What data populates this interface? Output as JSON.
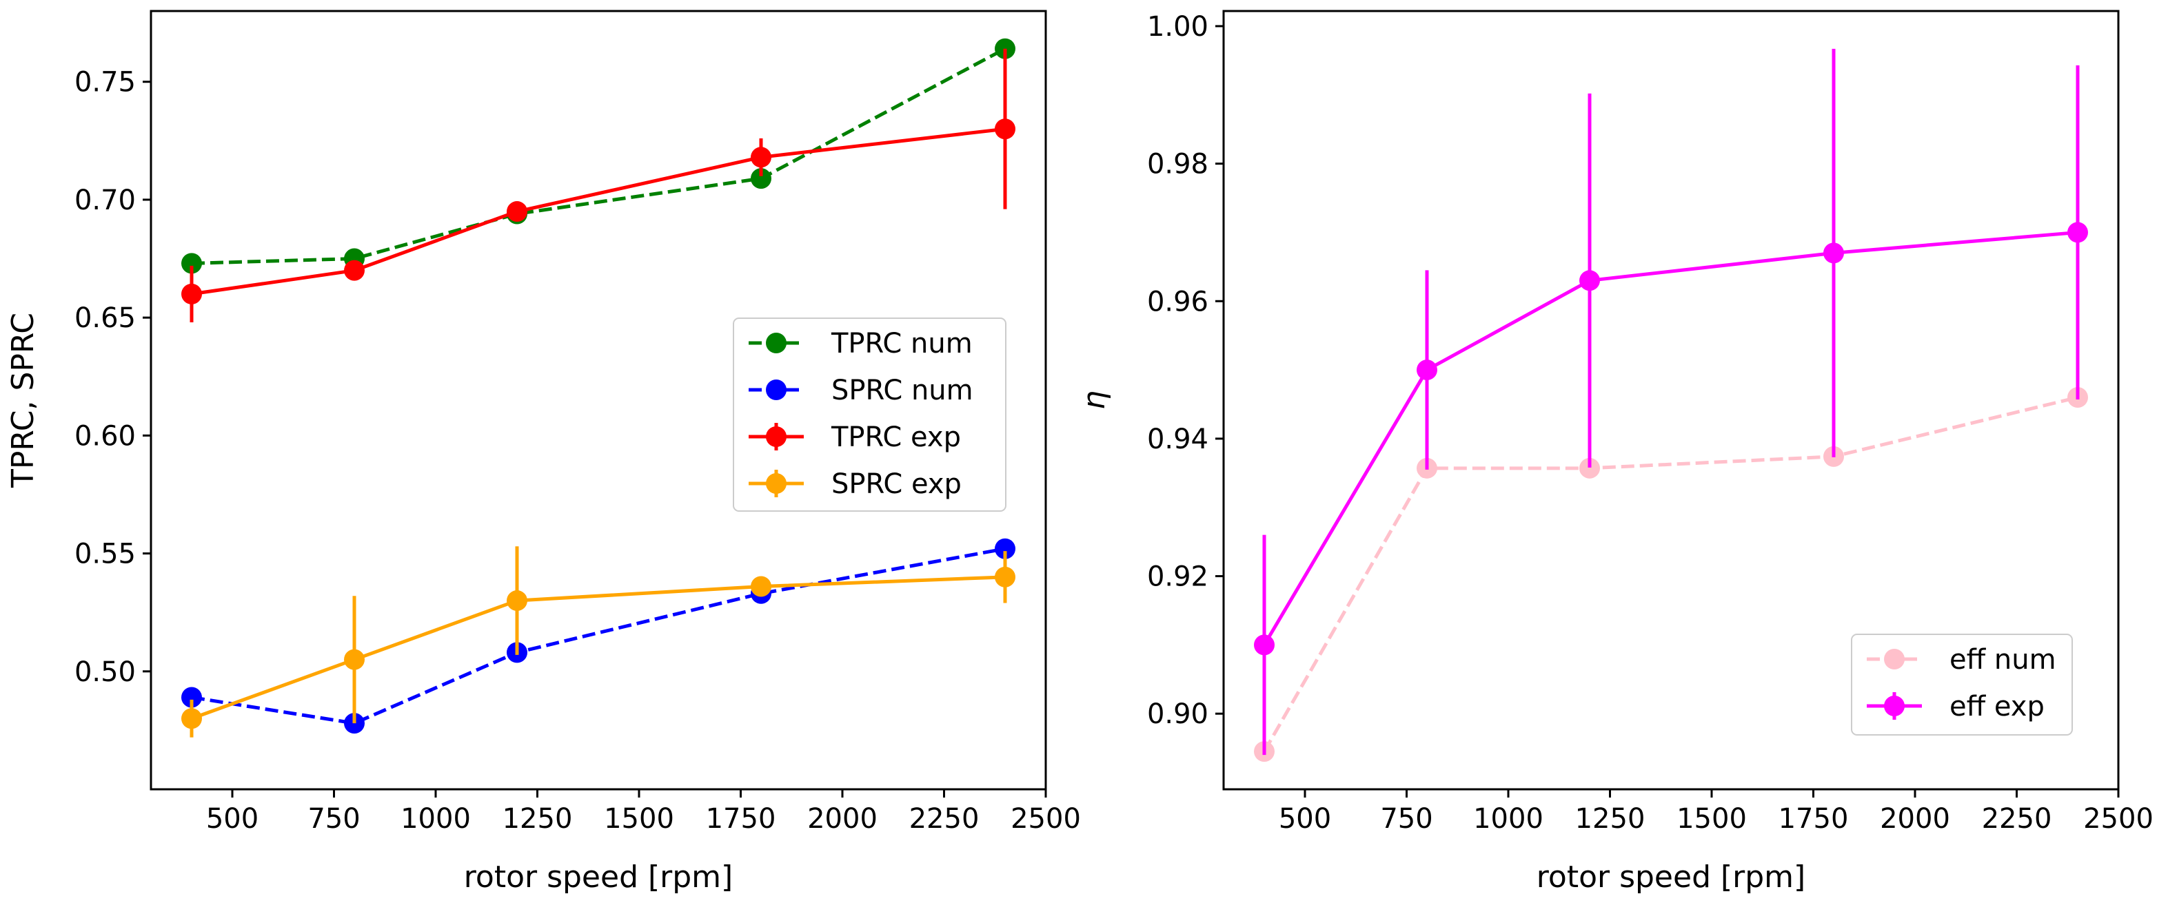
{
  "chart_data": [
    {
      "type": "line",
      "xlabel": "rotor speed [rpm]",
      "ylabel": "TPRC, SPRC",
      "xlim": [
        300,
        2500
      ],
      "ylim": [
        0.45,
        0.78
      ],
      "xticks": [
        500,
        750,
        1000,
        1250,
        1500,
        1750,
        2000,
        2250,
        2500
      ],
      "xtick_labels": [
        "500",
        "750",
        "1000",
        "1250",
        "1500",
        "1750",
        "2000",
        "2250",
        "2500"
      ],
      "yticks": [
        0.5,
        0.55,
        0.6,
        0.65,
        0.7,
        0.75
      ],
      "ytick_labels": [
        "0.50",
        "0.55",
        "0.60",
        "0.65",
        "0.70",
        "0.75"
      ],
      "legend_position": "center-right",
      "series": [
        {
          "name": "TPRC num",
          "color": "#008000",
          "dashed": true,
          "errorbar": false,
          "x": [
            400,
            800,
            1200,
            1800,
            2400
          ],
          "values": [
            0.673,
            0.675,
            0.694,
            0.709,
            0.764
          ]
        },
        {
          "name": "SPRC num",
          "color": "#0000ff",
          "dashed": true,
          "errorbar": false,
          "x": [
            400,
            800,
            1200,
            1800,
            2400
          ],
          "values": [
            0.489,
            0.478,
            0.508,
            0.533,
            0.552
          ]
        },
        {
          "name": "TPRC exp",
          "color": "#ff0000",
          "dashed": false,
          "errorbar": true,
          "x": [
            400,
            800,
            1200,
            1800,
            2400
          ],
          "values": [
            0.66,
            0.67,
            0.695,
            0.718,
            0.73
          ],
          "errors": [
            0.012,
            0.004,
            0.004,
            0.008,
            0.034
          ]
        },
        {
          "name": "SPRC exp",
          "color": "#ffa500",
          "dashed": false,
          "errorbar": true,
          "x": [
            400,
            800,
            1200,
            1800,
            2400
          ],
          "values": [
            0.48,
            0.505,
            0.53,
            0.536,
            0.54
          ],
          "errors": [
            0.008,
            0.027,
            0.023,
            0.004,
            0.011
          ]
        }
      ]
    },
    {
      "type": "line",
      "xlabel": "rotor speed [rpm]",
      "ylabel": "η",
      "xlim": [
        300,
        2500
      ],
      "ylim": [
        0.889,
        1.0022
      ],
      "xticks": [
        500,
        750,
        1000,
        1250,
        1500,
        1750,
        2000,
        2250,
        2500
      ],
      "xtick_labels": [
        "500",
        "750",
        "1000",
        "1250",
        "1500",
        "1750",
        "2000",
        "2250",
        "2500"
      ],
      "yticks": [
        0.9,
        0.92,
        0.94,
        0.96,
        0.98,
        1.0
      ],
      "ytick_labels": [
        "0.90",
        "0.92",
        "0.94",
        "0.96",
        "0.98",
        "1.00"
      ],
      "legend_position": "lower-right",
      "series": [
        {
          "name": "eff num",
          "color": "#ffc0cb",
          "dashed": true,
          "errorbar": false,
          "x": [
            400,
            800,
            1200,
            1800,
            2400
          ],
          "values": [
            0.8945,
            0.9357,
            0.9357,
            0.9374,
            0.946
          ]
        },
        {
          "name": "eff exp",
          "color": "#ff00ff",
          "dashed": false,
          "errorbar": true,
          "x": [
            400,
            800,
            1200,
            1800,
            2400
          ],
          "values": [
            0.91,
            0.95,
            0.963,
            0.967,
            0.97
          ],
          "errors": [
            0.016,
            0.0145,
            0.0272,
            0.0297,
            0.0243
          ]
        }
      ]
    }
  ]
}
